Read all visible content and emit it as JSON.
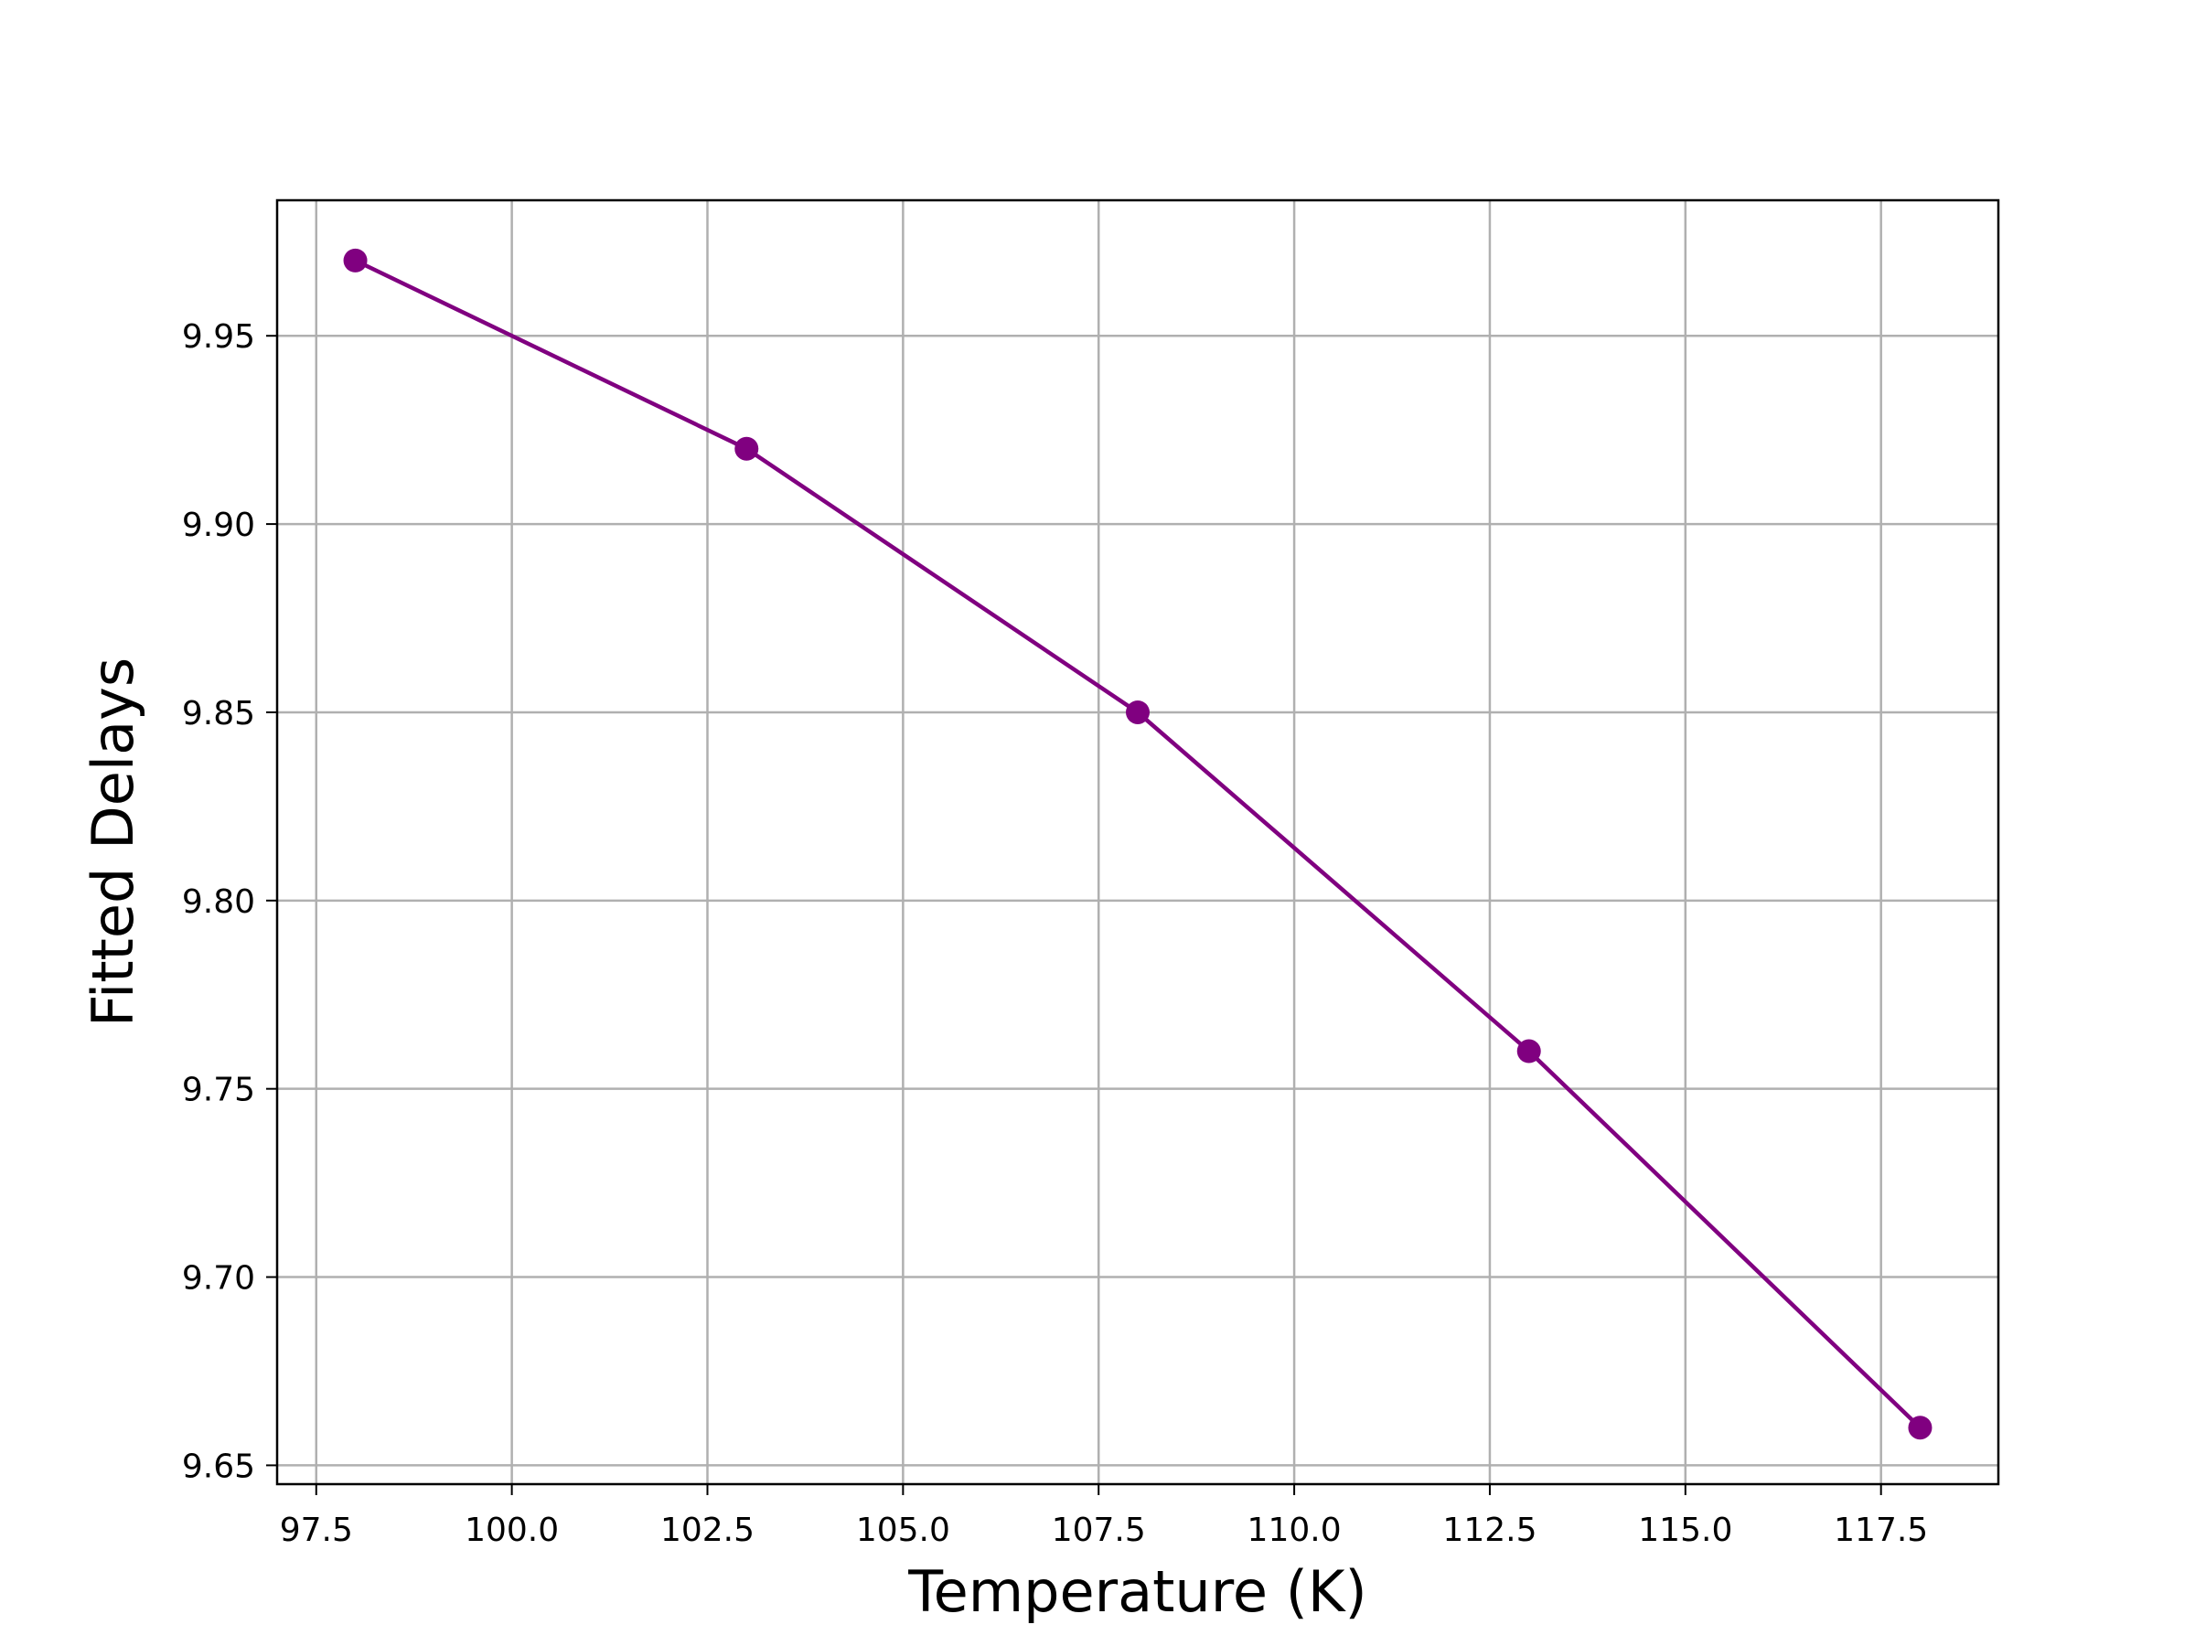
{
  "chart_data": {
    "type": "line",
    "title": "",
    "xlabel": "Temperature (K)",
    "ylabel": "Fitted Delays",
    "xlim": [
      97.0,
      119.0
    ],
    "ylim": [
      9.645,
      9.986
    ],
    "grid": true,
    "xticks": [
      "97.5",
      "100.0",
      "102.5",
      "105.0",
      "107.5",
      "110.0",
      "112.5",
      "115.0",
      "117.5"
    ],
    "yticks": [
      "9.65",
      "9.70",
      "9.75",
      "9.80",
      "9.85",
      "9.90",
      "9.95"
    ],
    "series": [
      {
        "x": [
          98,
          103,
          108,
          113,
          118
        ],
        "y": [
          9.97,
          9.92,
          9.85,
          9.76,
          9.66
        ],
        "color": "#800080",
        "marker": "circle"
      }
    ]
  }
}
